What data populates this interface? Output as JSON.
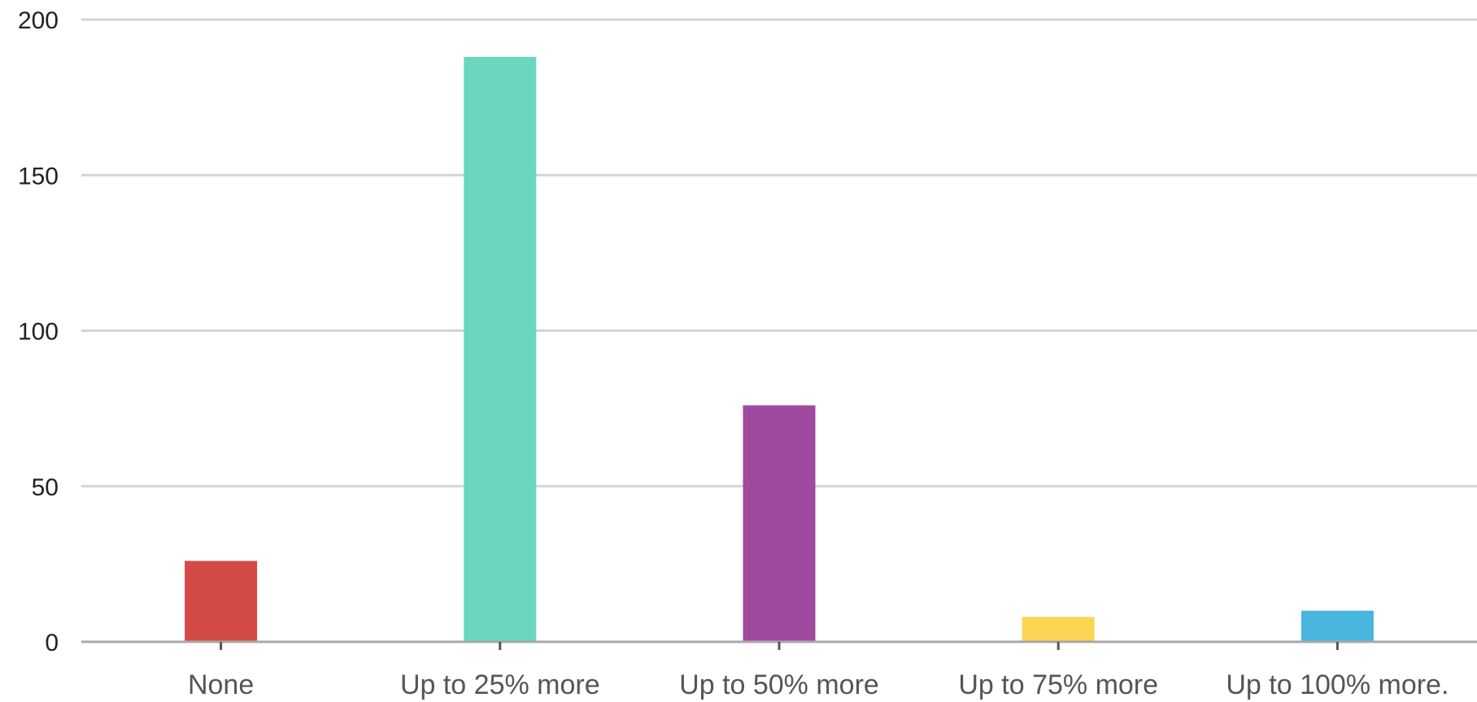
{
  "chart_data": {
    "type": "bar",
    "categories": [
      "None",
      "Up to 25% more",
      "Up to 50% more",
      "Up to 75% more",
      "Up to 100% more."
    ],
    "values": [
      26,
      188,
      76,
      8,
      10
    ],
    "colors": [
      "#d44a47",
      "#6bd6be",
      "#a04a9f",
      "#fed552",
      "#48b6de"
    ],
    "ylim": [
      0,
      200
    ],
    "yticks": [
      0,
      50,
      100,
      150,
      200
    ],
    "grid": true,
    "title": "",
    "xlabel": "",
    "ylabel": ""
  }
}
